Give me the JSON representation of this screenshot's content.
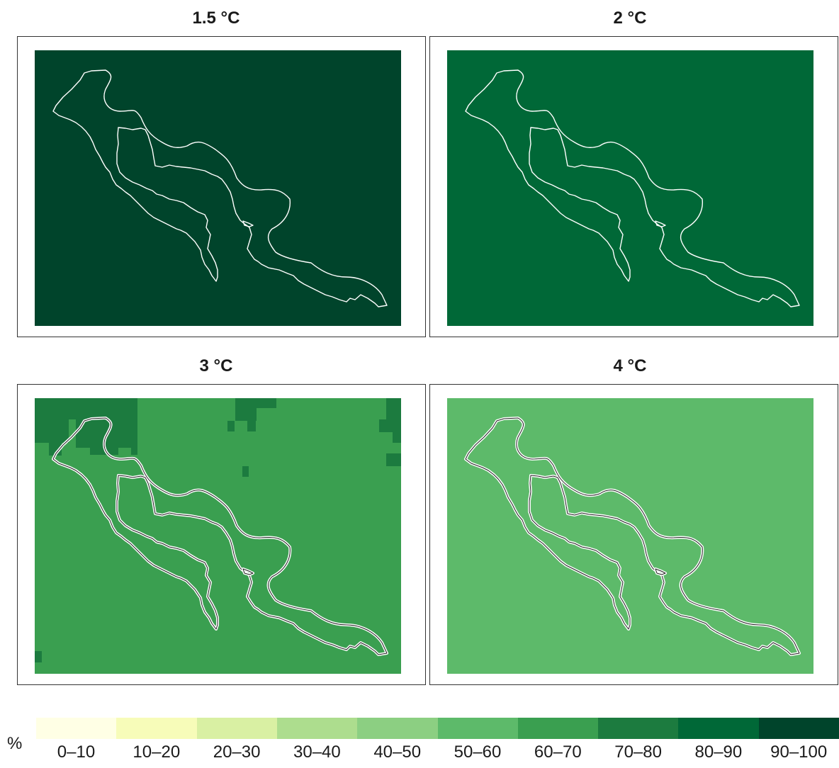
{
  "panels": [
    {
      "title": "1.5 °C",
      "bin": "90–100",
      "fill": "#00442b"
    },
    {
      "title": "2 °C",
      "bin": "80–90",
      "fill": "#006837"
    },
    {
      "title": "3 °C",
      "bin": "60–70",
      "fill": "#3a9f50",
      "patch_fill": "#1c7b3f",
      "patch_bin": "70–80"
    },
    {
      "title": "4 °C",
      "bin": "50–60",
      "fill": "#5dba6a"
    }
  ],
  "legend": {
    "unit": "%",
    "bins": [
      {
        "label": "0–10",
        "color": "#ffffe5"
      },
      {
        "label": "10–20",
        "color": "#f7fcb9"
      },
      {
        "label": "20–30",
        "color": "#d9f0a3"
      },
      {
        "label": "30–40",
        "color": "#addd8e"
      },
      {
        "label": "40–50",
        "color": "#8ccf82"
      },
      {
        "label": "50–60",
        "color": "#5dba6a"
      },
      {
        "label": "60–70",
        "color": "#3a9f50"
      },
      {
        "label": "70–80",
        "color": "#1c7b3f"
      },
      {
        "label": "80–90",
        "color": "#006837"
      },
      {
        "label": "90–100",
        "color": "#00442b"
      }
    ]
  }
}
